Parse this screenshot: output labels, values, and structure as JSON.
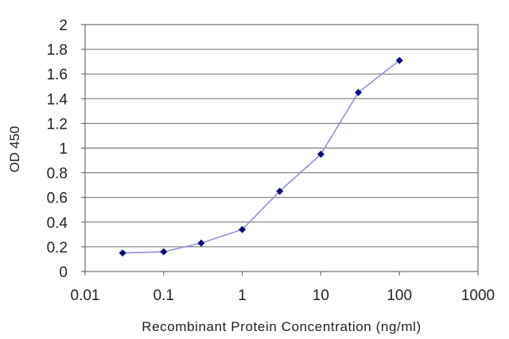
{
  "chart_data": {
    "type": "line",
    "xlabel": "Recombinant Protein Concentration (ng/ml)",
    "ylabel": "OD 450",
    "x_scale": "log",
    "xlim": [
      0.01,
      1000
    ],
    "ylim": [
      0,
      2
    ],
    "x_ticks": [
      0.01,
      0.1,
      1,
      10,
      100,
      1000
    ],
    "x_tick_labels": [
      "0.01",
      "0.1",
      "1",
      "10",
      "100",
      "1000"
    ],
    "y_ticks": [
      0,
      0.2,
      0.4,
      0.6,
      0.8,
      1,
      1.2,
      1.4,
      1.6,
      1.8,
      2
    ],
    "y_tick_labels": [
      "0",
      "0.2",
      "0.4",
      "0.6",
      "0.8",
      "1",
      "1.2",
      "1.4",
      "1.6",
      "1.8",
      "2"
    ],
    "grid": "horizontal",
    "series": [
      {
        "x": [
          0.03,
          0.1,
          0.3,
          1,
          3,
          10,
          30,
          100
        ],
        "y": [
          0.15,
          0.16,
          0.23,
          0.34,
          0.65,
          0.95,
          1.45,
          1.71
        ],
        "color": "#000080",
        "line_color": "#8f8fe8"
      }
    ]
  }
}
